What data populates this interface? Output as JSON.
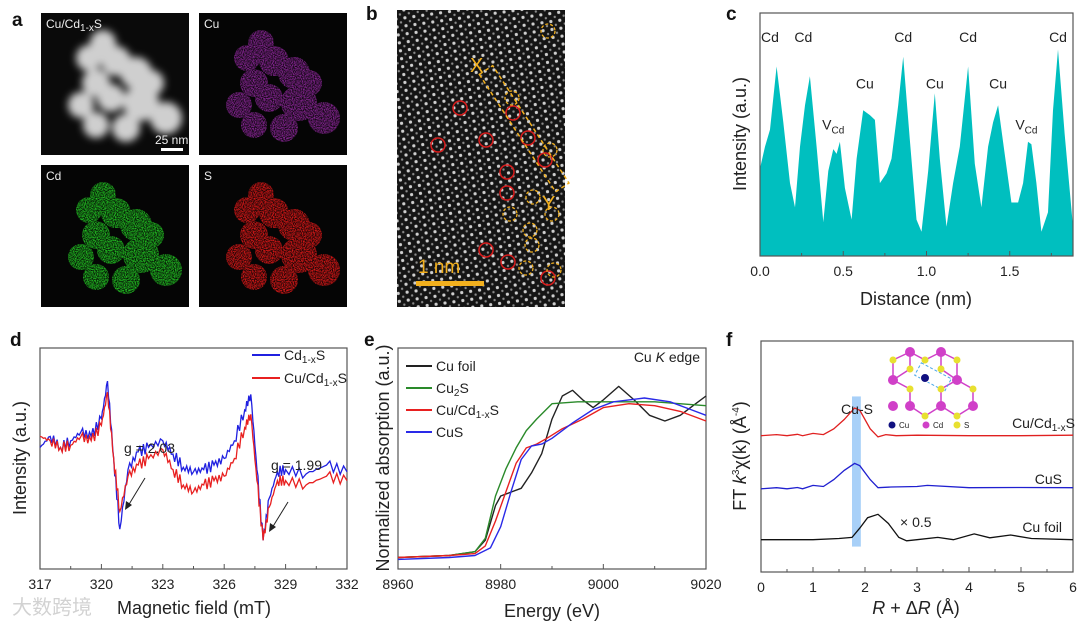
{
  "panel_labels": {
    "a": "a",
    "b": "b",
    "c": "c",
    "d": "d",
    "e": "e",
    "f": "f"
  },
  "panel_a": {
    "tiles": [
      {
        "label_main": "Cu/Cd",
        "label_sub": "1-x",
        "label_tail": "S",
        "color": "#ffffff"
      },
      {
        "label_main": "Cu",
        "color": "#b030b8"
      },
      {
        "label_main": "Cd",
        "color": "#22c422"
      },
      {
        "label_main": "S",
        "color": "#e01818"
      }
    ],
    "scale_bar": "25 nm"
  },
  "panel_b": {
    "marker_x": "X",
    "marker_y": "Y",
    "scale_bar": "1 nm",
    "accent": "#f2b01e",
    "vacancy_color": "#d81c1c"
  },
  "watermark": "大数跨境",
  "chart_data": [
    {
      "id": "c",
      "type": "area",
      "color": "#00bfbf",
      "xlabel": "Distance (nm)",
      "ylabel": "Intensity (a.u.)",
      "xlim": [
        0,
        1.88
      ],
      "ylim": [
        0,
        1
      ],
      "xticks": [
        0.0,
        0.5,
        1.0,
        1.5
      ],
      "xtick_labels": [
        "0.0",
        "0.5",
        "1.0",
        "1.5"
      ],
      "x": [
        0.0,
        0.03,
        0.06,
        0.1,
        0.14,
        0.18,
        0.21,
        0.24,
        0.27,
        0.3,
        0.34,
        0.38,
        0.41,
        0.44,
        0.46,
        0.48,
        0.51,
        0.55,
        0.58,
        0.62,
        0.66,
        0.69,
        0.72,
        0.76,
        0.79,
        0.83,
        0.86,
        0.9,
        0.94,
        0.97,
        1.01,
        1.05,
        1.08,
        1.12,
        1.16,
        1.2,
        1.25,
        1.29,
        1.33,
        1.37,
        1.4,
        1.43,
        1.47,
        1.51,
        1.55,
        1.58,
        1.61,
        1.63,
        1.66,
        1.69,
        1.73,
        1.76,
        1.79,
        1.83,
        1.88
      ],
      "y": [
        0.36,
        0.45,
        0.52,
        0.78,
        0.55,
        0.3,
        0.2,
        0.45,
        0.62,
        0.74,
        0.45,
        0.14,
        0.35,
        0.44,
        0.42,
        0.47,
        0.28,
        0.15,
        0.4,
        0.6,
        0.58,
        0.56,
        0.3,
        0.34,
        0.4,
        0.62,
        0.82,
        0.48,
        0.15,
        0.1,
        0.35,
        0.67,
        0.4,
        0.12,
        0.3,
        0.45,
        0.78,
        0.38,
        0.2,
        0.45,
        0.55,
        0.62,
        0.42,
        0.22,
        0.22,
        0.3,
        0.47,
        0.46,
        0.3,
        0.1,
        0.18,
        0.6,
        0.85,
        0.5,
        0.12
      ],
      "annotations": [
        {
          "text": "Cd",
          "x": 0.06,
          "y": 0.88
        },
        {
          "text": "Cd",
          "x": 0.26,
          "y": 0.88
        },
        {
          "text": "V",
          "sub": "Cd",
          "x": 0.44,
          "y": 0.52
        },
        {
          "text": "Cu",
          "x": 0.63,
          "y": 0.69
        },
        {
          "text": "Cd",
          "x": 0.86,
          "y": 0.88
        },
        {
          "text": "Cu",
          "x": 1.05,
          "y": 0.69
        },
        {
          "text": "Cd",
          "x": 1.25,
          "y": 0.88
        },
        {
          "text": "Cu",
          "x": 1.43,
          "y": 0.69
        },
        {
          "text": "V",
          "sub": "Cd",
          "x": 1.6,
          "y": 0.52
        },
        {
          "text": "Cd",
          "x": 1.79,
          "y": 0.88
        }
      ]
    },
    {
      "id": "d",
      "type": "line",
      "xlabel": "Magnetic field (mT)",
      "ylabel": "Intensity (a.u.)",
      "xlim": [
        317,
        332
      ],
      "ylim": [
        0,
        1
      ],
      "xticks": [
        317,
        320,
        323,
        326,
        329,
        332
      ],
      "series": [
        {
          "name_main": "Cd",
          "name_sub": "1-x",
          "name_tail": "S",
          "color": "#2020e0",
          "x": [
            317,
            317.5,
            318,
            318.5,
            319,
            319.5,
            320,
            320.3,
            320.6,
            320.9,
            321.3,
            321.8,
            322.3,
            323,
            323.5,
            324,
            324.5,
            325,
            325.5,
            326,
            326.5,
            327,
            327.3,
            327.6,
            327.9,
            328.2,
            328.6,
            329,
            330,
            331,
            332
          ],
          "y": [
            0.55,
            0.6,
            0.55,
            0.58,
            0.62,
            0.6,
            0.68,
            0.85,
            0.5,
            0.18,
            0.45,
            0.53,
            0.55,
            0.58,
            0.52,
            0.46,
            0.44,
            0.45,
            0.47,
            0.5,
            0.58,
            0.72,
            0.79,
            0.45,
            0.13,
            0.32,
            0.44,
            0.45,
            0.43,
            0.47,
            0.44
          ]
        },
        {
          "name_main": "Cu/Cd",
          "name_sub": "1-x",
          "name_tail": "S",
          "color": "#e82020",
          "x": [
            317,
            317.5,
            318,
            318.5,
            319,
            319.5,
            320,
            320.3,
            320.6,
            320.9,
            321.3,
            321.8,
            322.3,
            323,
            323.5,
            324,
            324.5,
            325,
            325.5,
            326,
            326.5,
            327,
            327.3,
            327.6,
            327.9,
            328.2,
            328.6,
            329,
            330,
            331,
            332
          ],
          "y": [
            0.6,
            0.58,
            0.55,
            0.56,
            0.6,
            0.58,
            0.65,
            0.8,
            0.5,
            0.26,
            0.42,
            0.47,
            0.5,
            0.54,
            0.45,
            0.38,
            0.35,
            0.38,
            0.4,
            0.42,
            0.5,
            0.64,
            0.7,
            0.4,
            0.13,
            0.28,
            0.4,
            0.4,
            0.38,
            0.42,
            0.4
          ]
        }
      ],
      "annotations": [
        {
          "text": "g = 2.03"
        },
        {
          "text": "g = 1.99"
        }
      ]
    },
    {
      "id": "e",
      "type": "line",
      "xlabel": "Energy (eV)",
      "ylabel": "Normalized absorption (a.u.)",
      "xlim": [
        8960,
        9020
      ],
      "ylim": [
        0,
        1.15
      ],
      "xticks": [
        8960,
        8980,
        9000,
        9020
      ],
      "annotation": {
        "main": "Cu ",
        "italic": "K",
        "tail": " edge"
      },
      "series": [
        {
          "name_main": "Cu foil",
          "color": "#222222",
          "x": [
            8960,
            8970,
            8975,
            8977,
            8979,
            8980,
            8982,
            8984,
            8986,
            8988,
            8990,
            8992,
            8994,
            8996,
            8998,
            9000,
            9003,
            9006,
            9009,
            9012,
            9015,
            9018,
            9020
          ],
          "y": [
            0.06,
            0.07,
            0.09,
            0.15,
            0.33,
            0.38,
            0.4,
            0.42,
            0.5,
            0.6,
            0.78,
            0.9,
            0.93,
            0.88,
            0.84,
            0.88,
            0.95,
            0.88,
            0.8,
            0.77,
            0.8,
            0.86,
            0.9
          ]
        },
        {
          "name_main": "Cu",
          "name_sub": "2",
          "name_tail": "S",
          "color": "#2a8a2a",
          "x": [
            8960,
            8970,
            8975,
            8977,
            8979,
            8981,
            8983,
            8985,
            8987,
            8990,
            8995,
            9000,
            9010,
            9020
          ],
          "y": [
            0.06,
            0.07,
            0.09,
            0.16,
            0.38,
            0.52,
            0.63,
            0.72,
            0.78,
            0.86,
            0.87,
            0.87,
            0.87,
            0.85
          ]
        },
        {
          "name_main": "Cu/Cd",
          "name_sub": "1-x",
          "name_tail": "S",
          "color": "#e82020",
          "x": [
            8960,
            8970,
            8975,
            8977,
            8979,
            8981,
            8983,
            8985,
            8987,
            8989,
            8992,
            8996,
            9000,
            9005,
            9010,
            9015,
            9020
          ],
          "y": [
            0.06,
            0.07,
            0.08,
            0.12,
            0.25,
            0.4,
            0.55,
            0.63,
            0.65,
            0.68,
            0.73,
            0.78,
            0.84,
            0.86,
            0.85,
            0.82,
            0.77
          ]
        },
        {
          "name_main": "CuS",
          "color": "#2a2ae8",
          "x": [
            8960,
            8970,
            8975,
            8978,
            8980,
            8982,
            8984,
            8986,
            8988,
            8990,
            8994,
            8998,
            9002,
            9008,
            9013,
            9017,
            9020
          ],
          "y": [
            0.05,
            0.06,
            0.07,
            0.11,
            0.22,
            0.4,
            0.57,
            0.64,
            0.65,
            0.68,
            0.76,
            0.83,
            0.87,
            0.89,
            0.87,
            0.83,
            0.8
          ]
        }
      ]
    },
    {
      "id": "f",
      "type": "line",
      "xlabel_parts": {
        "r1": "R",
        "mid": " + Δ",
        "r2": "R",
        "tail": " (Å)"
      },
      "ylabel_parts": {
        "a": "FT ",
        "k": "k",
        "sup": "3",
        "b": "χ(k) (Å",
        "sup2": "-4",
        "c": ")"
      },
      "xlim": [
        0,
        6
      ],
      "ylim": [
        0,
        1
      ],
      "xticks": [
        0,
        1,
        2,
        3,
        4,
        5,
        6
      ],
      "highlight": {
        "label": "Cu-S",
        "x": [
          1.75,
          1.92
        ],
        "color": "#a8d0f8"
      },
      "scale_note": "× 0.5",
      "inset_legend": [
        "Cu",
        "Cd",
        "S"
      ],
      "inset_colors": {
        "Cu": "#101080",
        "Cd": "#d040c8",
        "S": "#e8e030"
      },
      "series": [
        {
          "name_main": "Cu/Cd",
          "name_sub": "1-x",
          "name_tail": "S",
          "color": "#e02020",
          "x": [
            0,
            0.3,
            0.5,
            0.7,
            0.8,
            1.0,
            1.2,
            1.4,
            1.6,
            1.8,
            1.9,
            2.1,
            2.25,
            2.4,
            2.6,
            3,
            4,
            5,
            6
          ],
          "y": [
            0.59,
            0.595,
            0.59,
            0.596,
            0.59,
            0.6,
            0.595,
            0.62,
            0.66,
            0.71,
            0.7,
            0.62,
            0.585,
            0.595,
            0.59,
            0.592,
            0.59,
            0.59,
            0.592
          ]
        },
        {
          "name_main": "CuS",
          "color": "#2020d0",
          "x": [
            0,
            0.3,
            0.5,
            0.7,
            0.8,
            1.0,
            1.2,
            1.4,
            1.6,
            1.8,
            1.9,
            2.1,
            2.25,
            2.5,
            3,
            3.2,
            4,
            5,
            6
          ],
          "y": [
            0.36,
            0.365,
            0.36,
            0.366,
            0.36,
            0.375,
            0.37,
            0.4,
            0.44,
            0.47,
            0.46,
            0.4,
            0.365,
            0.368,
            0.37,
            0.375,
            0.365,
            0.366,
            0.365
          ]
        },
        {
          "name_main": "Cu foil",
          "color": "#111111",
          "x": [
            0,
            1,
            1.5,
            1.75,
            1.9,
            2.05,
            2.25,
            2.45,
            2.65,
            2.8,
            3.0,
            3.4,
            3.7,
            4.1,
            4.4,
            4.8,
            5.2,
            6
          ],
          "y": [
            0.14,
            0.14,
            0.145,
            0.15,
            0.19,
            0.235,
            0.25,
            0.21,
            0.15,
            0.135,
            0.14,
            0.15,
            0.14,
            0.165,
            0.148,
            0.16,
            0.145,
            0.14
          ]
        }
      ]
    }
  ]
}
